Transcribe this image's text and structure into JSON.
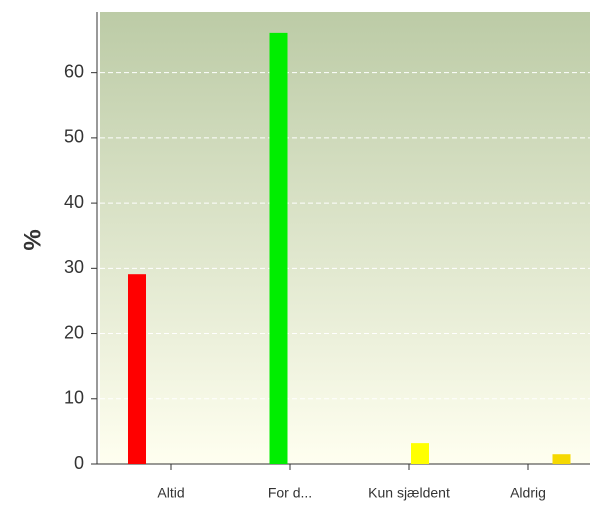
{
  "chart_data": {
    "type": "bar",
    "y_label": "%",
    "categories": [
      "Altid",
      "For d...",
      "Kun sjældent",
      "Aldrig"
    ],
    "values": [
      29.1,
      66.1,
      3.2,
      1.5
    ],
    "colors": [
      "#ff0000",
      "#00ee00",
      "#ffff00",
      "#f5d800"
    ],
    "ylim": [
      0,
      69.3
    ],
    "yticks": [
      0,
      10,
      20,
      30,
      40,
      50,
      60
    ],
    "grid": true
  }
}
